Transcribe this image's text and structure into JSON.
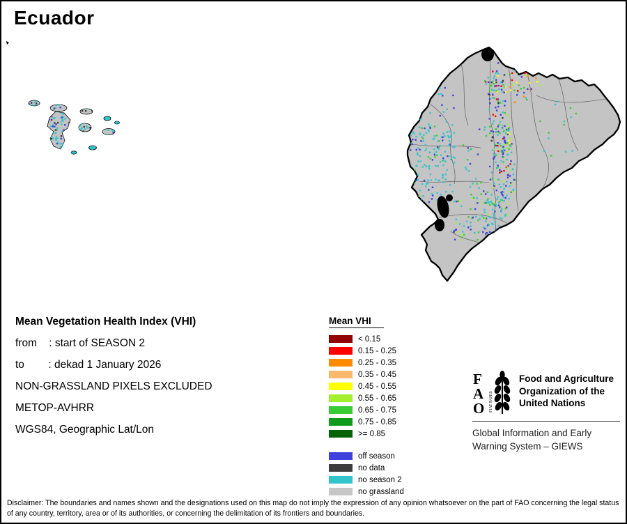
{
  "title": "Ecuador",
  "info_block": {
    "heading": "Mean Vegetation Health Index (VHI)",
    "lines": [
      "from    : start of SEASON 2",
      "to        : dekad 1 January 2026",
      "NON-GRASSLAND PIXELS EXCLUDED",
      "METOP-AVHRR",
      "WGS84, Geographic Lat/Lon"
    ]
  },
  "legend": {
    "heading": "Mean VHI",
    "classes": [
      {
        "label": "< 0.15",
        "color": "#920000"
      },
      {
        "label": "0.15 - 0.25",
        "color": "#ff0000"
      },
      {
        "label": "0.25 - 0.35",
        "color": "#ff8a00"
      },
      {
        "label": "0.35 - 0.45",
        "color": "#fbb76c"
      },
      {
        "label": "0.45 - 0.55",
        "color": "#ffff00"
      },
      {
        "label": "0.55 - 0.65",
        "color": "#a4ef2d"
      },
      {
        "label": "0.65 - 0.75",
        "color": "#37cc33"
      },
      {
        "label": "0.75 - 0.85",
        "color": "#119b1c"
      },
      {
        "label": ">= 0.85",
        "color": "#056305"
      }
    ],
    "extra_classes": [
      {
        "label": "off season",
        "color": "#4040dd"
      },
      {
        "label": "no data",
        "color": "#3c3c3c"
      },
      {
        "label": "no season 2",
        "color": "#31c5cb"
      },
      {
        "label": "no grassland",
        "color": "#c6c6c6"
      }
    ]
  },
  "fao": {
    "logo_letters": [
      "F",
      "A",
      "O"
    ],
    "logo_motto": "FIAT PANIS",
    "org_lines": [
      "Food and Agriculture",
      "Organization of the",
      "United Nations"
    ],
    "giews_lines": [
      "Global Information and Early",
      "Warning System – GIEWS"
    ]
  },
  "map": {
    "land_color": "#c4c4c4",
    "outline_color": "#000000",
    "water_color": "#000000"
  },
  "disclaimer": "Disclaimer: The boundaries and names shown and the designations used on this map do not imply the expression of any opinion whatsoever on the part of FAO concerning the legal status of any country, territory, area or of its authorities, or concerning the delimitation of its frontiers and boundaries."
}
